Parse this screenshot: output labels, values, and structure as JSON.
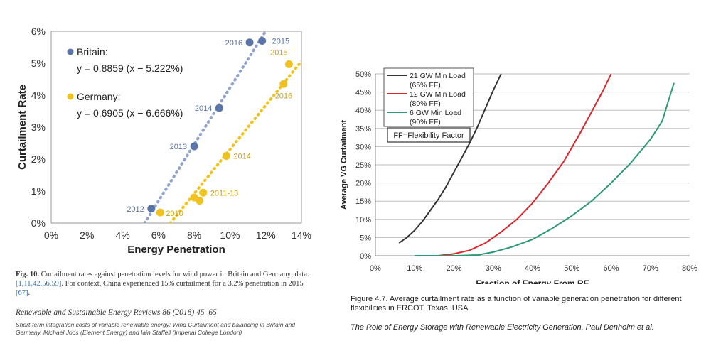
{
  "chart_data": [
    {
      "type": "scatter",
      "xlabel": "Energy Penetration",
      "ylabel": "Curtailment Rate",
      "xlim": [
        0,
        14
      ],
      "ylim": [
        0,
        6
      ],
      "xticks": [
        0,
        2,
        4,
        6,
        8,
        10,
        12,
        14
      ],
      "yticks": [
        0,
        1,
        2,
        3,
        4,
        5,
        6
      ],
      "xtick_labels": [
        "0%",
        "2%",
        "4%",
        "6%",
        "8%",
        "10%",
        "12%",
        "14%"
      ],
      "ytick_labels": [
        "0%",
        "1%",
        "2%",
        "3%",
        "4%",
        "5%",
        "6%"
      ],
      "grid": false,
      "legend": "top-left",
      "series": [
        {
          "name": "Britain:",
          "equation": "y = 0.8859 (x − 5.222%)",
          "color": "#5b74aa",
          "line_color": "#8fa3cc",
          "slope": 0.8859,
          "intercept_x": 5.222,
          "points": [
            {
              "x": 5.6,
              "y": 0.45,
              "label": "2012"
            },
            {
              "x": 8.0,
              "y": 2.4,
              "label": "2013"
            },
            {
              "x": 9.4,
              "y": 3.6,
              "label": "2014"
            },
            {
              "x": 11.1,
              "y": 5.65,
              "label": "2016"
            },
            {
              "x": 11.8,
              "y": 5.7,
              "label": "2015"
            }
          ]
        },
        {
          "name": "Germany:",
          "equation": "y = 0.6905 (x − 6.666%)",
          "color": "#f0c21f",
          "line_color": "#f3c218",
          "slope": 0.6905,
          "intercept_x": 6.666,
          "points": [
            {
              "x": 6.1,
              "y": 0.33,
              "label": "2010"
            },
            {
              "x": 8.0,
              "y": 0.8,
              "label": ""
            },
            {
              "x": 8.3,
              "y": 0.7,
              "label": ""
            },
            {
              "x": 8.5,
              "y": 0.95,
              "label": "2011-13"
            },
            {
              "x": 9.8,
              "y": 2.1,
              "label": "2014"
            },
            {
              "x": 13.0,
              "y": 4.35,
              "label": "2016"
            },
            {
              "x": 13.3,
              "y": 4.97,
              "label": "2015"
            }
          ]
        }
      ]
    },
    {
      "type": "line",
      "xlabel": "Fraction of Energy From RE",
      "ylabel": "Average VG Curtailment",
      "xlim": [
        0,
        80
      ],
      "ylim": [
        0,
        50
      ],
      "xticks": [
        0,
        10,
        20,
        30,
        40,
        50,
        60,
        70,
        80
      ],
      "yticks": [
        0,
        5,
        10,
        15,
        20,
        25,
        30,
        35,
        40,
        45,
        50
      ],
      "xtick_labels": [
        "0%",
        "10%",
        "20%",
        "30%",
        "40%",
        "50%",
        "60%",
        "70%",
        "80%"
      ],
      "ytick_labels": [
        "0%",
        "5%",
        "10%",
        "15%",
        "20%",
        "25%",
        "30%",
        "35%",
        "40%",
        "45%",
        "50%"
      ],
      "grid": true,
      "legend": "top-left",
      "annotation": "FF=Flexibility Factor",
      "series": [
        {
          "name": "21 GW Min Load",
          "name_sub": "(65% FF)",
          "color": "#333333",
          "x": [
            6,
            8,
            10,
            12,
            14,
            16,
            18,
            20,
            22,
            24,
            26,
            28,
            30,
            32
          ],
          "y": [
            3.5,
            5,
            7,
            9.5,
            12.5,
            15.5,
            19,
            23,
            27,
            31,
            35.5,
            40.5,
            45.5,
            50
          ]
        },
        {
          "name": "12 GW Min Load",
          "name_sub": "(80% FF)",
          "color": "#d9262b",
          "x": [
            16,
            20,
            24,
            28,
            32,
            36,
            40,
            44,
            48,
            52,
            56,
            58,
            60
          ],
          "y": [
            0,
            0.5,
            1.5,
            3.5,
            6.5,
            10,
            14.5,
            20,
            26,
            33.5,
            41.5,
            45.5,
            50
          ]
        },
        {
          "name": "6 GW Min Load",
          "name_sub": "(90% FF)",
          "color": "#2b9a72",
          "x": [
            10,
            20,
            26,
            30,
            35,
            40,
            45,
            50,
            55,
            60,
            65,
            70,
            73,
            76
          ],
          "y": [
            0,
            0,
            0.2,
            1,
            2.5,
            4.5,
            7.5,
            11,
            15,
            20,
            25.5,
            32,
            37,
            47.5
          ]
        }
      ]
    }
  ],
  "captions": {
    "left_fig": "Fig. 10.",
    "left_main_a": "Curtailment rates against penetration levels for wind power in Britain and Germany; data:",
    "left_refs": "[1,11,42,56,59]",
    "left_main_b": ". For context, China experienced 15% curtailment for a 3.2% penetration in 2015",
    "left_ref2": "[67]",
    "left_main_c": ".",
    "left_journal": "Renewable and Sustainable Energy Reviews 86 (2018) 45–65",
    "left_source": "Short-term integration costs of variable renewable energy: Wind Curtailment and balancing in Britain and Germany, Michael Joos (Element Energy) and  Iain Staffell (Imperial College London)",
    "right_main": "Figure 4.7. Average curtailment rate as a function of variable generation penetration for different flexibilities in ERCOT, Texas, USA",
    "right_source": "The Role of Energy Storage with Renewable Electricity Generation, Paul Denholm et al."
  }
}
